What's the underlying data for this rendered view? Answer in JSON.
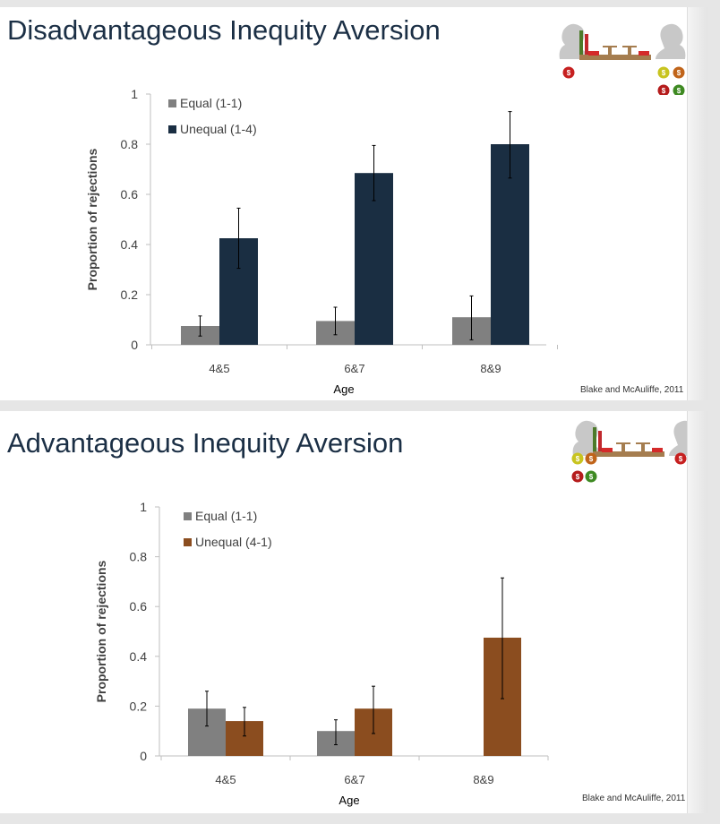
{
  "slides": [
    {
      "title": "Disadvantageous Inequity Aversion",
      "citation": "Blake and McAuliffe, 2011"
    },
    {
      "title": "Advantageous Inequity Aversion",
      "citation": "Blake and McAuliffe, 2011"
    }
  ],
  "illustration": {
    "icon": "inequity-game-apparatus-icon",
    "coin_label": "$"
  },
  "chart_data": [
    {
      "type": "bar",
      "title": "",
      "xlabel": "Age",
      "ylabel": "Proportion of rejections",
      "ylim": [
        0,
        1
      ],
      "yticks": [
        "0",
        "0.2",
        "0.4",
        "0.6",
        "0.8",
        "1"
      ],
      "categories": [
        "4&5",
        "6&7",
        "8&9"
      ],
      "legend_position": "top-left",
      "grid": false,
      "series": [
        {
          "name": "Equal (1-1)",
          "color": "#808080",
          "values": [
            0.075,
            0.095,
            0.11
          ],
          "error_low": [
            0.035,
            0.04,
            0.02
          ],
          "error_high": [
            0.115,
            0.15,
            0.195
          ]
        },
        {
          "name": "Unequal (1-4)",
          "color": "#1a2e42",
          "values": [
            0.425,
            0.685,
            0.8
          ],
          "error_low": [
            0.305,
            0.575,
            0.665
          ],
          "error_high": [
            0.545,
            0.795,
            0.93
          ]
        }
      ]
    },
    {
      "type": "bar",
      "title": "",
      "xlabel": "Age",
      "ylabel": "Proportion of rejections",
      "ylim": [
        0,
        1
      ],
      "yticks": [
        "0",
        "0.2",
        "0.4",
        "0.6",
        "0.8",
        "1"
      ],
      "categories": [
        "4&5",
        "6&7",
        "8&9"
      ],
      "legend_position": "top-left",
      "grid": false,
      "series": [
        {
          "name": "Equal (1-1)",
          "color": "#808080",
          "values": [
            0.19,
            0.1,
            0
          ],
          "error_low": [
            0.12,
            0.045,
            null
          ],
          "error_high": [
            0.26,
            0.145,
            null
          ]
        },
        {
          "name": "Unequal (4-1)",
          "color": "#8b4d1f",
          "values": [
            0.14,
            0.19,
            0.475
          ],
          "error_low": [
            0.08,
            0.09,
            0.23
          ],
          "error_high": [
            0.195,
            0.28,
            0.715
          ]
        }
      ]
    }
  ]
}
